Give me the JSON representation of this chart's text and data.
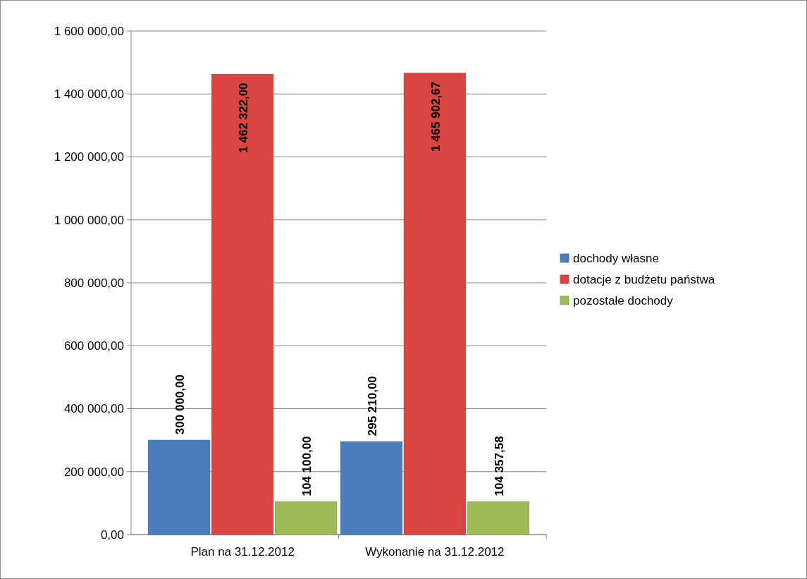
{
  "chart_data": {
    "type": "bar",
    "categories": [
      "Plan na 31.12.2012",
      "Wykonanie na 31.12.2012"
    ],
    "series": [
      {
        "name": "dochody własne",
        "color": "#4a7ebb",
        "values": [
          300000,
          295210
        ],
        "value_labels": [
          "300 000,00",
          "295 210,00"
        ]
      },
      {
        "name": "dotacje z budżetu państwa",
        "color": "#d94541",
        "values": [
          1462322,
          1465902.67
        ],
        "value_labels": [
          "1 462 322,00",
          "1 465 902,67"
        ]
      },
      {
        "name": "pozostałe dochody",
        "color": "#9bbb59",
        "values": [
          104100,
          104357.58
        ],
        "value_labels": [
          "104 100,00",
          "104 357,58"
        ]
      }
    ],
    "ylim": [
      0,
      1600000
    ],
    "yticks": [
      {
        "value": 0,
        "label": "0,00"
      },
      {
        "value": 200000,
        "label": "200 000,00"
      },
      {
        "value": 400000,
        "label": "400 000,00"
      },
      {
        "value": 600000,
        "label": "600 000,00"
      },
      {
        "value": 800000,
        "label": "800 000,00"
      },
      {
        "value": 1000000,
        "label": "1 000 000,00"
      },
      {
        "value": 1200000,
        "label": "1 200 000,00"
      },
      {
        "value": 1400000,
        "label": "1 400 000,00"
      },
      {
        "value": 1600000,
        "label": "1 600 000,00"
      }
    ],
    "grid": "y",
    "legend": "right"
  }
}
